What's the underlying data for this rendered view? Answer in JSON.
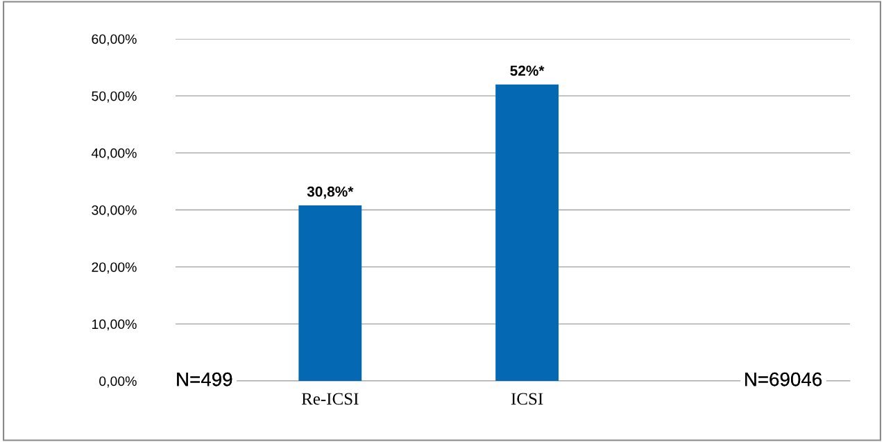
{
  "chart_data": {
    "type": "bar",
    "categories": [
      "Re-ICSI",
      "ICSI"
    ],
    "values": [
      30.8,
      52
    ],
    "value_labels": [
      "30,8%*",
      "52%*"
    ],
    "color": "#0568b3",
    "ylim": [
      0,
      60
    ],
    "yticks": [
      {
        "value": 0,
        "label": "0,00%"
      },
      {
        "value": 10,
        "label": "10,00%"
      },
      {
        "value": 20,
        "label": "20,00%"
      },
      {
        "value": 30,
        "label": "30,00%"
      },
      {
        "value": 40,
        "label": "40,00%"
      },
      {
        "value": 50,
        "label": "50,00%"
      },
      {
        "value": 60,
        "label": "60,00%"
      }
    ],
    "grid": "y",
    "annotations": [
      "N=499",
      "N=69046"
    ]
  }
}
